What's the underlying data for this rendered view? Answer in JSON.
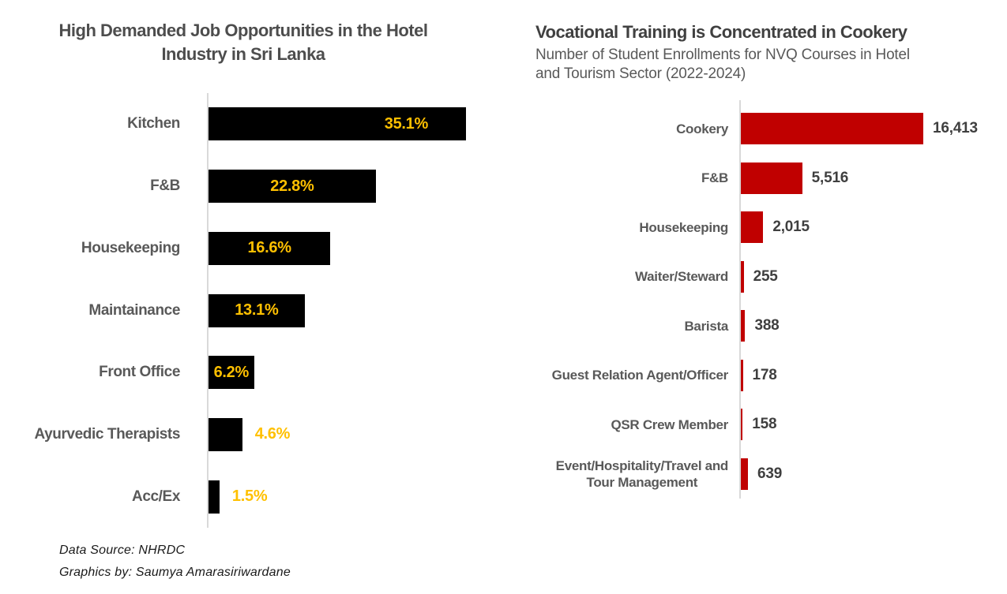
{
  "chart_data": [
    {
      "type": "bar",
      "orientation": "horizontal",
      "title": "High Demanded Job Opportunities in the Hotel\nIndustry in Sri Lanka",
      "categories": [
        "Kitchen",
        "F&B",
        "Housekeeping",
        "Maintainance",
        "Front Office",
        "Ayurvedic Therapists",
        "Acc/Ex"
      ],
      "values": [
        35.1,
        22.8,
        16.6,
        13.1,
        6.2,
        4.6,
        1.5
      ],
      "value_labels": [
        "35.1%",
        "22.8%",
        "16.6%",
        "13.1%",
        "6.2%",
        "4.6%",
        "1.5%"
      ],
      "xlim": [
        0,
        35.1
      ],
      "bar_color": "#000000",
      "value_label_color": "#FFC000",
      "category_label_color": "#595959",
      "grid": false,
      "legend": false,
      "axis_line_color": "#d9d9d9"
    },
    {
      "type": "bar",
      "orientation": "horizontal",
      "title": "Vocational Training is Concentrated in Cookery",
      "subtitle": "Number of Student Enrollments for NVQ Courses in Hotel\nand Tourism Sector (2022-2024)",
      "categories": [
        "Cookery",
        "F&B",
        "Housekeeping",
        "Waiter/Steward",
        "Barista",
        "Guest Relation Agent/Officer",
        "QSR Crew Member",
        "Event/Hospitality/Travel and\nTour Management"
      ],
      "values": [
        16413,
        5516,
        2015,
        255,
        388,
        178,
        158,
        639
      ],
      "value_labels": [
        "16,413",
        "5,516",
        "2,015",
        "255",
        "388",
        "178",
        "158",
        "639"
      ],
      "xlim": [
        0,
        16413
      ],
      "bar_color": "#C00000",
      "value_label_color": "#3f3f3f",
      "category_label_color": "#595959",
      "grid": false,
      "legend": false,
      "axis_line_color": "#d9d9d9"
    }
  ],
  "footer": {
    "data_source": "Data Source: NHRDC",
    "credit": "Graphics by: Saumya Amarasiriwardane"
  }
}
